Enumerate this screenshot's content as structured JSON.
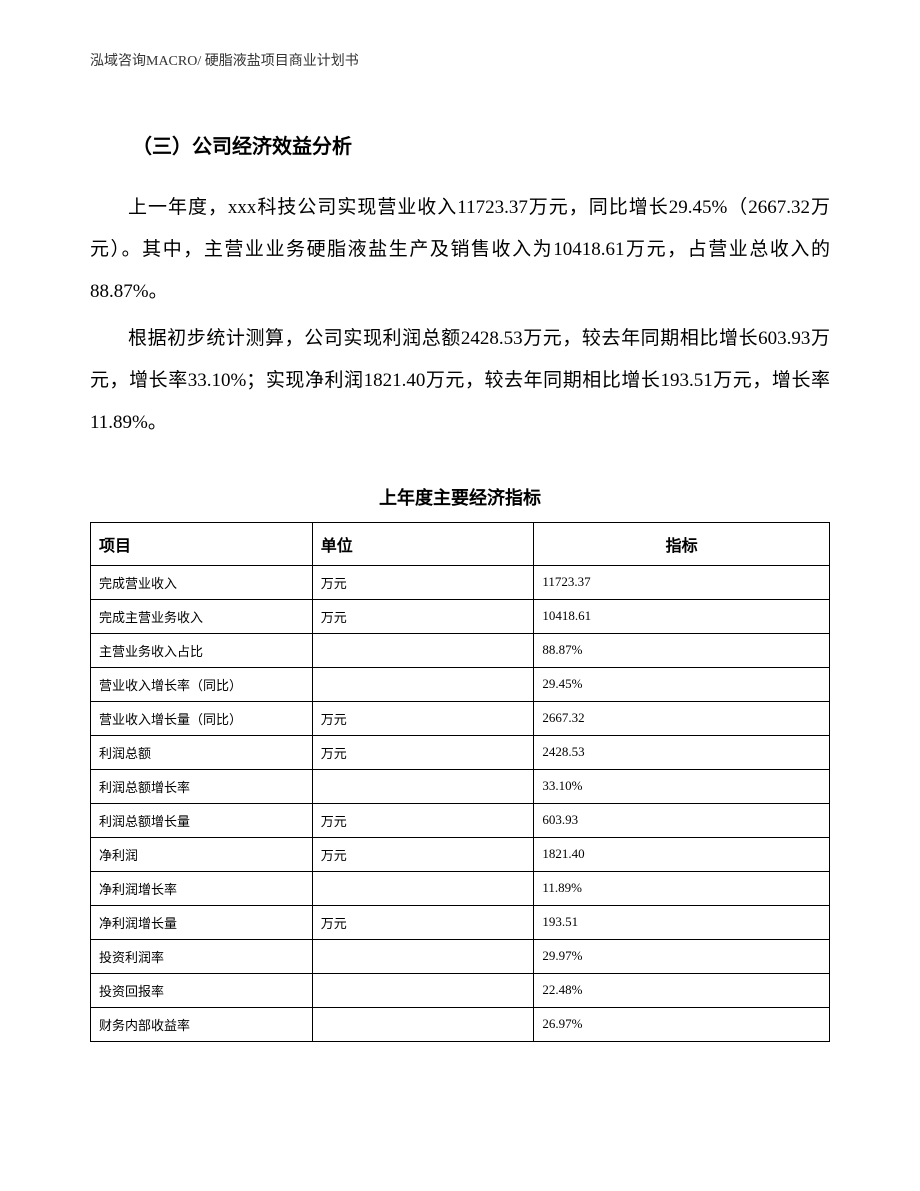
{
  "header": {
    "text": "泓域咨询MACRO/ 硬脂液盐项目商业计划书"
  },
  "section": {
    "heading": "（三）公司经济效益分析",
    "paragraph1": "上一年度，xxx科技公司实现营业收入11723.37万元，同比增长29.45%（2667.32万元）。其中，主营业业务硬脂液盐生产及销售收入为10418.61万元，占营业总收入的88.87%。",
    "paragraph2": "根据初步统计测算，公司实现利润总额2428.53万元，较去年同期相比增长603.93万元，增长率33.10%；实现净利润1821.40万元，较去年同期相比增长193.51万元，增长率11.89%。"
  },
  "table": {
    "title": "上年度主要经济指标",
    "type": "table",
    "border_color": "#000000",
    "header_fontsize": 16,
    "cell_fontsize": 13,
    "columns": [
      "项目",
      "单位",
      "指标"
    ],
    "column_widths": [
      "30%",
      "30%",
      "40%"
    ],
    "header_alignment": [
      "left",
      "left",
      "center"
    ],
    "cell_alignment": [
      "left",
      "left",
      "left"
    ],
    "rows": [
      [
        "完成营业收入",
        "万元",
        "11723.37"
      ],
      [
        "完成主营业务收入",
        "万元",
        "10418.61"
      ],
      [
        "主营业务收入占比",
        "",
        "88.87%"
      ],
      [
        "营业收入增长率（同比）",
        "",
        "29.45%"
      ],
      [
        "营业收入增长量（同比）",
        "万元",
        "2667.32"
      ],
      [
        "利润总额",
        "万元",
        "2428.53"
      ],
      [
        "利润总额增长率",
        "",
        "33.10%"
      ],
      [
        "利润总额增长量",
        "万元",
        "603.93"
      ],
      [
        "净利润",
        "万元",
        "1821.40"
      ],
      [
        "净利润增长率",
        "",
        "11.89%"
      ],
      [
        "净利润增长量",
        "万元",
        "193.51"
      ],
      [
        "投资利润率",
        "",
        "29.97%"
      ],
      [
        "投资回报率",
        "",
        "22.48%"
      ],
      [
        "财务内部收益率",
        "",
        "26.97%"
      ]
    ]
  }
}
